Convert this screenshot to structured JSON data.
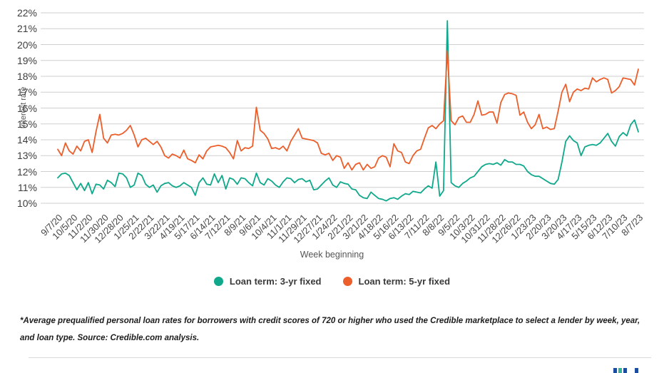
{
  "chart_data": {
    "type": "line",
    "title": "",
    "xlabel": "Week beginning",
    "ylabel": "Interest rate",
    "ylim": [
      10,
      22
    ],
    "grid": "horizontal",
    "legend_position": "bottom",
    "y_ticks": [
      22,
      21,
      20,
      19,
      18,
      17,
      16,
      15,
      14,
      13,
      12,
      11,
      10
    ],
    "y_tick_suffix": "%",
    "x_tick_every_n_points": 4,
    "x_tick_labels": [
      "9/7/20",
      "10/5/20",
      "11/2/20",
      "11/30/20",
      "12/28/20",
      "1/25/21",
      "2/22/21",
      "3/22/21",
      "4/19/21",
      "5/17/21",
      "6/14/21",
      "7/12/21",
      "8/9/21",
      "9/6/21",
      "10/4/21",
      "11/1/21",
      "11/29/21",
      "12/27/21",
      "1/24/22",
      "2/21/22",
      "3/21/22",
      "4/18/22",
      "5/16/22",
      "6/13/22",
      "7/11/22",
      "8/8/22",
      "9/5/22",
      "10/3/22",
      "10/31/22",
      "11/28/22",
      "12/26/22",
      "1/23/23",
      "2/20/23",
      "3/20/23",
      "4/17/23",
      "5/15/23",
      "6/12/23",
      "7/10/23",
      "8/7/23"
    ],
    "series": [
      {
        "name": "Loan term: 3-yr fixed",
        "color": "#0FA88C",
        "values": [
          11.6,
          11.85,
          11.9,
          11.75,
          11.3,
          10.85,
          11.25,
          10.8,
          11.3,
          10.6,
          11.2,
          11.15,
          10.9,
          11.45,
          11.3,
          11.05,
          11.9,
          11.85,
          11.6,
          11.0,
          11.15,
          11.9,
          11.75,
          11.2,
          11.0,
          11.15,
          10.7,
          11.1,
          11.25,
          11.3,
          11.1,
          11.0,
          11.1,
          11.3,
          11.15,
          11.0,
          10.5,
          11.3,
          11.6,
          11.2,
          11.15,
          11.85,
          11.3,
          11.75,
          10.9,
          11.6,
          11.5,
          11.2,
          11.6,
          11.55,
          11.3,
          11.1,
          11.9,
          11.3,
          11.15,
          11.55,
          11.4,
          11.15,
          11.0,
          11.35,
          11.6,
          11.55,
          11.3,
          11.5,
          11.55,
          11.35,
          11.45,
          10.85,
          10.9,
          11.15,
          11.4,
          11.6,
          11.15,
          11.0,
          11.35,
          11.25,
          11.2,
          10.9,
          10.85,
          10.5,
          10.35,
          10.3,
          10.7,
          10.5,
          10.3,
          10.25,
          10.15,
          10.3,
          10.35,
          10.25,
          10.45,
          10.6,
          10.55,
          10.75,
          10.7,
          10.65,
          10.9,
          11.1,
          10.95,
          12.6,
          10.45,
          10.8,
          21.5,
          11.3,
          11.1,
          11.0,
          11.25,
          11.4,
          11.6,
          11.7,
          12.0,
          12.3,
          12.45,
          12.5,
          12.45,
          12.55,
          12.4,
          12.75,
          12.6,
          12.6,
          12.45,
          12.45,
          12.35,
          12.0,
          11.8,
          11.7,
          11.7,
          11.55,
          11.4,
          11.25,
          11.2,
          11.5,
          12.6,
          13.9,
          14.25,
          13.95,
          13.8,
          13.0,
          13.55,
          13.65,
          13.7,
          13.65,
          13.8,
          14.1,
          14.4,
          13.9,
          13.6,
          14.2,
          14.45,
          14.25,
          14.95,
          15.25,
          14.5
        ]
      },
      {
        "name": "Loan term: 5-yr fixed",
        "color": "#EC5E2A",
        "values": [
          13.4,
          13.0,
          13.8,
          13.3,
          13.1,
          13.6,
          13.3,
          13.9,
          14.0,
          13.2,
          14.5,
          15.6,
          14.1,
          13.8,
          14.3,
          14.35,
          14.3,
          14.4,
          14.6,
          14.9,
          14.3,
          13.55,
          14.0,
          14.1,
          13.9,
          13.7,
          13.9,
          13.55,
          13.0,
          12.85,
          13.1,
          13.0,
          12.85,
          13.35,
          12.8,
          12.7,
          12.55,
          13.05,
          12.8,
          13.3,
          13.55,
          13.6,
          13.65,
          13.6,
          13.5,
          13.2,
          12.8,
          13.95,
          13.3,
          13.5,
          13.45,
          13.6,
          16.05,
          14.6,
          14.4,
          14.05,
          13.45,
          13.5,
          13.4,
          13.6,
          13.3,
          13.9,
          14.3,
          14.7,
          14.1,
          14.05,
          14.0,
          13.95,
          13.8,
          13.15,
          13.05,
          13.15,
          12.7,
          13.0,
          12.9,
          12.2,
          12.55,
          12.1,
          12.45,
          12.55,
          12.1,
          12.45,
          12.2,
          12.3,
          12.85,
          13.0,
          12.9,
          12.3,
          13.75,
          13.3,
          13.2,
          12.6,
          12.5,
          13.0,
          13.3,
          13.4,
          14.1,
          14.75,
          14.9,
          14.7,
          15.0,
          15.2,
          19.6,
          15.2,
          14.95,
          15.4,
          15.5,
          15.1,
          15.1,
          15.6,
          16.45,
          15.55,
          15.6,
          15.75,
          15.75,
          15.05,
          16.35,
          16.85,
          16.95,
          16.9,
          16.8,
          15.55,
          15.75,
          15.1,
          14.7,
          14.95,
          15.6,
          14.7,
          14.8,
          14.65,
          14.7,
          15.8,
          17.0,
          17.5,
          16.4,
          17.0,
          17.2,
          17.1,
          17.25,
          17.2,
          17.9,
          17.65,
          17.8,
          17.9,
          17.8,
          16.95,
          17.1,
          17.35,
          17.9,
          17.85,
          17.8,
          17.45,
          18.45
        ]
      }
    ]
  },
  "footnote": {
    "text": "*Average prequalified personal loan rates for borrowers with credit scores of 720 or higher who used the Credible marketplace to select a lender by week, year, and loan type. Source: Credible.com analysis."
  },
  "logo": {
    "marks": [
      {
        "color": "#1B4CA0"
      },
      {
        "color": "#35B39B"
      },
      {
        "color": "#1B4CA0"
      },
      {
        "color": "#1B4CA0"
      }
    ]
  }
}
